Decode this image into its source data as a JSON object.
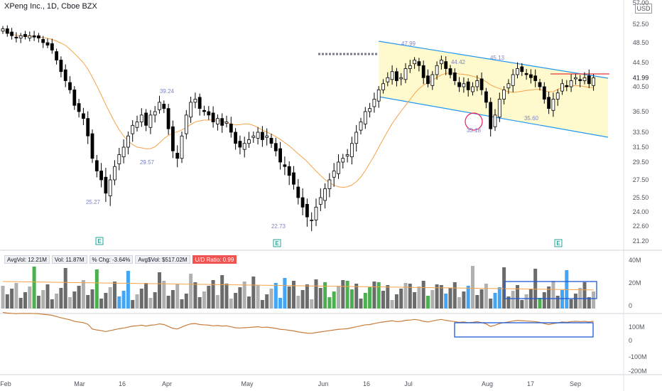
{
  "header": {
    "title": "XPeng Inc., 1D, Cboe BZX",
    "currency": "USD"
  },
  "colors": {
    "candle": "#000000",
    "ma": "#f5a34a",
    "channel": "#2196f3",
    "fill": "#fff9c4",
    "resistance": "#e53935",
    "vol_gray": "#6b6b6b",
    "vol_light": "#b0b0b0",
    "vol_green": "#4caf50",
    "vol_blue": "#42a5f5",
    "rs": "#c77d3c",
    "highlight": "#1e5bd6"
  },
  "stats": {
    "avgvol": "AvgVol: 12.21M",
    "vol": "Vol: 11.87M",
    "chg": "% Chg: -3.64%",
    "avgdvol": "Avg$Vol: $517.02M",
    "ud": "U/D Ratio: 0.99"
  },
  "chart_data": {
    "type": "candlestick",
    "price_axis": {
      "labels": [
        "57.00",
        "52.50",
        "48.50",
        "44.50",
        "40.50",
        "36.50",
        "33.50",
        "31.50",
        "29.50",
        "27.50",
        "25.50",
        "24.00",
        "22.60",
        "21.20"
      ],
      "last_price": "41.99"
    },
    "x_axis": {
      "labels": [
        "Feb",
        "Mar",
        "16",
        "Apr",
        "May",
        "Jun",
        "16",
        "Jul",
        "Aug",
        "17",
        "Sep"
      ]
    },
    "annotations": [
      "25.27",
      "29.57",
      "39.24",
      "22.73",
      "47.99",
      "44.42",
      "45.13",
      "33.18",
      "35.60"
    ],
    "earnings_marker": "E",
    "volume_axis": {
      "labels": [
        "40M",
        "20M",
        "0"
      ]
    },
    "rs_axis": {
      "labels": [
        "100M",
        "0",
        "-100M",
        "-200M"
      ]
    },
    "closes": [
      51.5,
      50.5,
      50,
      49.5,
      50,
      49.8,
      50,
      49.7,
      49.5,
      48.5,
      48,
      47,
      45,
      43,
      41.5,
      40,
      37.5,
      36.5,
      35.5,
      33,
      30,
      28.5,
      27.5,
      26,
      27.5,
      29,
      30.5,
      31.5,
      33,
      34.5,
      35,
      36,
      34.5,
      36,
      36.5,
      38,
      37,
      34,
      31,
      30,
      33,
      36,
      38,
      38.5,
      37,
      36.5,
      36,
      35,
      35.5,
      34.5,
      35,
      33.5,
      32,
      31.5,
      32,
      32.5,
      33,
      33.5,
      32.5,
      33,
      32,
      31,
      29.5,
      29,
      28,
      27,
      25.5,
      24.5,
      23.5,
      23.2,
      24.5,
      25.5,
      26.5,
      27.5,
      28.5,
      29.5,
      30,
      30.5,
      32,
      33.5,
      35,
      36.5,
      37,
      38.5,
      40,
      41,
      42,
      43,
      41.5,
      42,
      43.5,
      44,
      45,
      44,
      42,
      41,
      42.5,
      44,
      45,
      43.5,
      42.5,
      41.5,
      40.5,
      41,
      40,
      40.5,
      41.5,
      40,
      38,
      34,
      36,
      38.5,
      40,
      41,
      42.5,
      43.5,
      43,
      42.5,
      42,
      41.5,
      40.5,
      38.5,
      37,
      38.5,
      39.5,
      41,
      40.5,
      41.5,
      42,
      41.5,
      42,
      41,
      41.99
    ]
  }
}
